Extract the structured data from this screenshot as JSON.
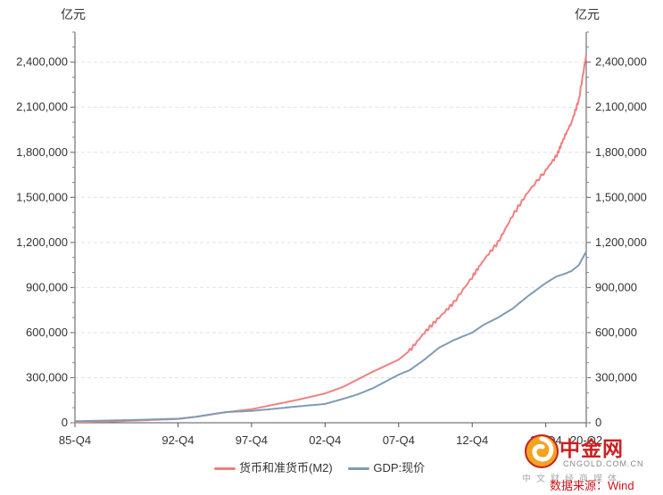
{
  "chart_data": {
    "type": "line",
    "unit_left": "亿元",
    "unit_right": "亿元",
    "ylim": [
      0,
      2600000
    ],
    "yticks": [
      0,
      300000,
      600000,
      900000,
      1200000,
      1500000,
      1800000,
      2100000,
      2400000
    ],
    "ytick_labels": [
      "0",
      "300,000",
      "600,000",
      "900,000",
      "1,200,000",
      "1,500,000",
      "1,800,000",
      "2,100,000",
      "2,400,000"
    ],
    "xlim": [
      1985.75,
      2020.5
    ],
    "xticks": [
      1985.75,
      1992.75,
      1997.75,
      2002.75,
      2007.75,
      2012.75,
      2017.75,
      2020.5
    ],
    "xtick_labels": [
      "85-Q4",
      "92-Q4",
      "97-Q4",
      "02-Q4",
      "07-Q4",
      "12-Q4",
      "17-Q4",
      "20-Q2"
    ],
    "grid": true,
    "legend_position": "bottom-center",
    "series": [
      {
        "name": "货币和准货币(M2)",
        "color": "#f08080",
        "x": [
          1985.75,
          1988,
          1990,
          1992.75,
          1994,
          1995,
          1996,
          1997.75,
          1999,
          2000,
          2001,
          2002.75,
          2004,
          2005,
          2006,
          2007.75,
          2008.5,
          2009.5,
          2010.5,
          2011.5,
          2012.75,
          2013.5,
          2014.5,
          2015.5,
          2016.5,
          2017.75,
          2018.5,
          2019,
          2019.5,
          2020,
          2020.5
        ],
        "y": [
          5000,
          8000,
          15000,
          25000,
          40000,
          55000,
          70000,
          90000,
          115000,
          135000,
          155000,
          195000,
          240000,
          290000,
          340000,
          420000,
          480000,
          600000,
          700000,
          800000,
          970000,
          1080000,
          1200000,
          1380000,
          1530000,
          1680000,
          1780000,
          1900000,
          2000000,
          2150000,
          2450000
        ]
      },
      {
        "name": "GDP:现价",
        "color": "#7f9cb4",
        "x": [
          1985.75,
          1988,
          1990,
          1992.75,
          1994,
          1995,
          1996,
          1997.75,
          1999,
          2000,
          2001,
          2002.75,
          2004,
          2005,
          2006,
          2007.75,
          2008.5,
          2009.5,
          2010.5,
          2011.5,
          2012.75,
          2013.5,
          2014.5,
          2015.5,
          2016.5,
          2017.75,
          2018.5,
          2019,
          2019.5,
          2020,
          2020.5
        ],
        "y": [
          10000,
          15000,
          19000,
          27000,
          40000,
          56000,
          71000,
          79000,
          90000,
          100000,
          110000,
          125000,
          160000,
          190000,
          230000,
          320000,
          350000,
          420000,
          500000,
          550000,
          600000,
          650000,
          700000,
          760000,
          840000,
          930000,
          975000,
          990000,
          1010000,
          1050000,
          1140000
        ]
      }
    ]
  },
  "source_text": "数据来源：Wind",
  "logo": {
    "brand": "中金网",
    "domain": "CNGOLD.COM.CN",
    "sub": "中文财经商媒体"
  }
}
